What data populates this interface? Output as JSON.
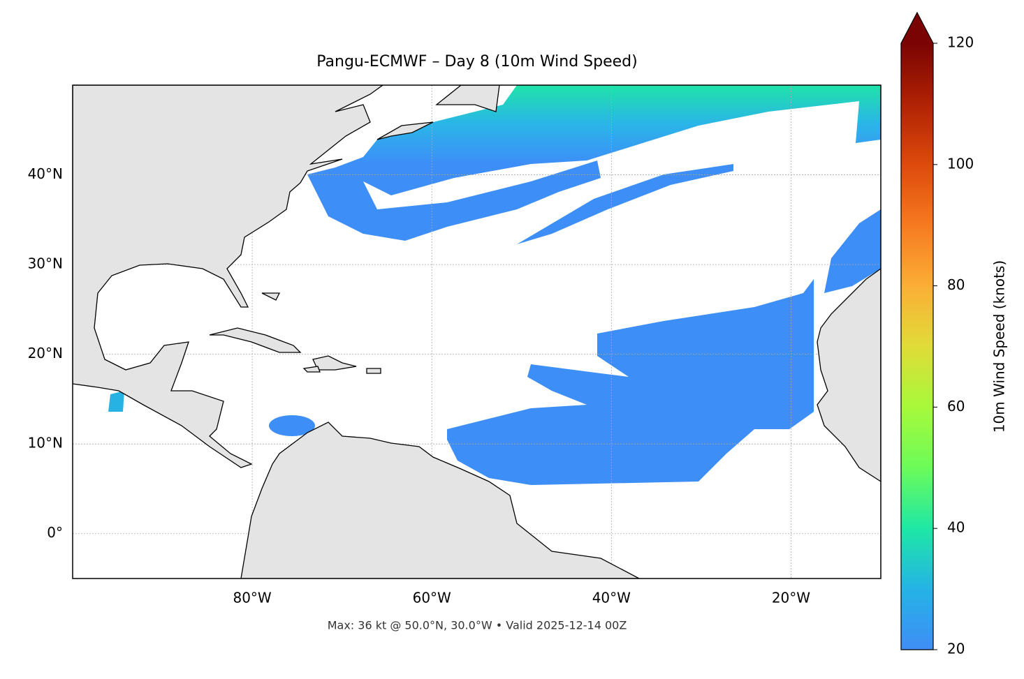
{
  "chart_data": {
    "type": "map",
    "title": "Pangu-ECMWF – Day 8 (10m Wind Speed)",
    "footer": "Max: 36 kt @ 50.0°N, 30.0°W • Valid 2025-12-14 00Z",
    "xlim": [
      -100,
      -10
    ],
    "ylim": [
      -5,
      50
    ],
    "xticks": [
      {
        "value": -80,
        "label": "80°W"
      },
      {
        "value": -60,
        "label": "60°W"
      },
      {
        "value": -40,
        "label": "40°W"
      },
      {
        "value": -20,
        "label": "20°W"
      }
    ],
    "yticks": [
      {
        "value": 0,
        "label": "0°"
      },
      {
        "value": 10,
        "label": "10°N"
      },
      {
        "value": 20,
        "label": "20°N"
      },
      {
        "value": 30,
        "label": "30°N"
      },
      {
        "value": 40,
        "label": "40°N"
      }
    ],
    "grid": true,
    "colorbar": {
      "label": "10m Wind Speed (knots)",
      "lim": [
        20,
        120
      ],
      "ticks": [
        20,
        40,
        60,
        80,
        100,
        120
      ],
      "extend": "max"
    }
  }
}
